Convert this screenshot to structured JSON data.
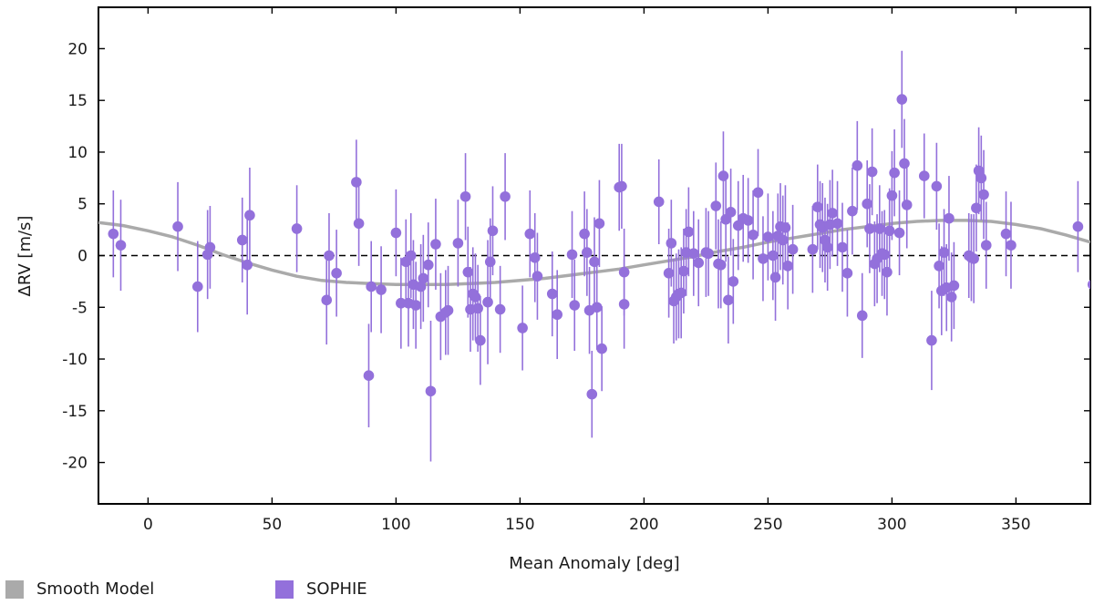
{
  "chart_data": {
    "type": "scatter",
    "title": "",
    "xlabel": "Mean Anomaly [deg]",
    "ylabel": "ΔRV [m/s]",
    "xlim": [
      -20,
      380
    ],
    "ylim": [
      -24,
      24
    ],
    "x_ticks": [
      0,
      50,
      100,
      150,
      200,
      250,
      300,
      350
    ],
    "y_ticks": [
      20,
      15,
      10,
      5,
      0,
      -5,
      -10,
      -15,
      -20
    ],
    "zero_line": true,
    "legend": [
      {
        "label": "Smooth Model",
        "color": "#aaaaaa"
      },
      {
        "label": "SOPHIE",
        "color": "#9370db"
      }
    ],
    "series": [
      {
        "name": "Smooth Model",
        "kind": "line",
        "color": "#aaaaaa",
        "x": [
          -20,
          -10,
          0,
          10,
          20,
          30,
          40,
          50,
          60,
          70,
          80,
          90,
          100,
          110,
          120,
          130,
          140,
          150,
          160,
          170,
          180,
          190,
          200,
          210,
          220,
          230,
          240,
          250,
          260,
          270,
          280,
          290,
          300,
          310,
          320,
          330,
          340,
          350,
          360,
          370,
          380
        ],
        "y": [
          3.2,
          2.9,
          2.4,
          1.8,
          1.0,
          0.1,
          -0.7,
          -1.4,
          -2.0,
          -2.4,
          -2.6,
          -2.7,
          -2.8,
          -2.8,
          -2.8,
          -2.7,
          -2.6,
          -2.4,
          -2.2,
          -1.9,
          -1.6,
          -1.3,
          -0.9,
          -0.5,
          -0.1,
          0.4,
          0.8,
          1.3,
          1.7,
          2.1,
          2.5,
          2.8,
          3.1,
          3.3,
          3.4,
          3.4,
          3.3,
          3.0,
          2.6,
          2.0,
          1.3
        ]
      },
      {
        "name": "SOPHIE",
        "kind": "scatter",
        "color": "#9370db",
        "x": [
          -14,
          -11,
          12,
          20,
          24,
          25,
          38,
          40,
          41,
          60,
          72,
          73,
          76,
          84,
          85,
          89,
          90,
          94,
          100,
          102,
          104,
          105,
          106,
          107,
          108,
          110,
          111,
          113,
          114,
          116,
          118,
          120,
          121,
          125,
          128,
          129,
          130,
          131,
          132,
          133,
          134,
          137,
          138,
          139,
          142,
          144,
          151,
          154,
          156,
          157,
          163,
          165,
          171,
          172,
          176,
          177,
          178,
          179,
          180,
          181,
          182,
          183,
          190,
          191,
          192,
          192,
          206,
          210,
          211,
          212,
          213,
          214,
          215,
          216,
          217,
          218,
          220,
          222,
          225,
          226,
          229,
          230,
          231,
          232,
          233,
          234,
          235,
          236,
          238,
          240,
          242,
          244,
          246,
          248,
          250,
          252,
          253,
          254,
          255,
          256,
          257,
          258,
          260,
          268,
          270,
          271,
          272,
          273,
          274,
          275,
          276,
          278,
          280,
          282,
          284,
          286,
          288,
          290,
          291,
          292,
          293,
          294,
          295,
          296,
          297,
          298,
          299,
          300,
          301,
          303,
          304,
          305,
          306,
          313,
          316,
          318,
          319,
          320,
          321,
          322,
          323,
          324,
          325,
          331,
          332,
          333,
          334,
          335,
          336,
          337,
          338,
          346,
          348,
          375,
          381
        ],
        "y": [
          2.1,
          1.0,
          2.8,
          -3.0,
          0.1,
          0.8,
          1.5,
          -0.9,
          3.9,
          2.6,
          -4.3,
          0.0,
          -1.7,
          7.1,
          3.1,
          -11.6,
          -3.0,
          -3.3,
          2.2,
          -4.6,
          -0.6,
          -4.6,
          0.0,
          -2.8,
          -4.8,
          -3.0,
          -2.2,
          -0.9,
          -13.1,
          1.1,
          -5.9,
          -5.5,
          -5.3,
          1.2,
          5.7,
          -1.6,
          -5.2,
          -3.7,
          -4.0,
          -5.1,
          -8.2,
          -4.5,
          -0.6,
          2.4,
          -5.2,
          5.7,
          -7.0,
          2.1,
          -0.2,
          -2.0,
          -3.7,
          -5.7,
          0.1,
          -4.8,
          2.1,
          0.3,
          -5.3,
          -13.4,
          -0.6,
          -5.0,
          3.1,
          -9.0,
          6.6,
          6.7,
          -1.6,
          -4.7,
          5.2,
          -1.7,
          1.2,
          -4.4,
          -4.0,
          -3.7,
          -3.6,
          -1.5,
          0.3,
          2.3,
          0.2,
          -0.7,
          0.3,
          0.2,
          4.8,
          -0.8,
          -0.9,
          7.7,
          3.5,
          -4.3,
          4.2,
          -2.5,
          2.9,
          3.6,
          3.4,
          2.0,
          6.1,
          -0.3,
          1.8,
          0.0,
          -2.1,
          1.9,
          2.8,
          1.5,
          2.7,
          -1.0,
          0.6,
          0.6,
          4.7,
          3.0,
          2.7,
          1.5,
          0.8,
          3.0,
          4.1,
          3.1,
          0.8,
          -1.7,
          4.3,
          8.7,
          -5.8,
          5.0,
          2.6,
          8.1,
          -0.8,
          -0.3,
          2.6,
          0.2,
          0.1,
          -1.6,
          2.4,
          5.8,
          8.0,
          2.2,
          15.1,
          8.9,
          4.9,
          7.7,
          -8.2,
          6.7,
          -1.0,
          -3.4,
          0.3,
          -3.1,
          3.6,
          -4.0,
          -2.9,
          0.0,
          -0.2,
          -0.3,
          4.6,
          8.2,
          7.5,
          5.9,
          1.0,
          2.1,
          1.0,
          2.8,
          -2.8
        ],
        "err": [
          4.2,
          4.4,
          4.3,
          4.4,
          4.3,
          4.0,
          4.1,
          4.8,
          4.6,
          4.2,
          4.3,
          4.1,
          4.2,
          4.1,
          4.1,
          5.0,
          4.4,
          4.2,
          4.2,
          4.4,
          4.1,
          4.2,
          4.1,
          4.3,
          4.2,
          4.1,
          4.2,
          4.1,
          6.8,
          4.4,
          4.2,
          4.1,
          4.3,
          4.2,
          4.2,
          4.4,
          4.1,
          4.5,
          4.2,
          4.2,
          4.3,
          6.0,
          4.2,
          4.3,
          4.2,
          4.2,
          4.1,
          4.2,
          4.3,
          4.2,
          4.1,
          4.3,
          4.2,
          4.4,
          4.1,
          4.2,
          4.2,
          4.2,
          4.3,
          4.1,
          4.2,
          4.1,
          4.2,
          4.1,
          4.2,
          4.3,
          4.1,
          4.3,
          4.2,
          4.1,
          4.2,
          4.3,
          4.4,
          4.1,
          4.2,
          4.3,
          4.1,
          4.2,
          4.3,
          4.1,
          4.2,
          4.3,
          4.2,
          4.3,
          4.1,
          4.2,
          4.2,
          4.1,
          4.3,
          4.2,
          4.1,
          4.3,
          4.2,
          4.1,
          4.2,
          4.3,
          4.2,
          4.1,
          4.2,
          4.3,
          4.1,
          4.2,
          4.3,
          4.2,
          4.1,
          4.2,
          4.3,
          4.1,
          4.2,
          4.3,
          4.2,
          4.1,
          4.3,
          4.2,
          4.2,
          4.3,
          4.1,
          4.2,
          4.3,
          4.2,
          4.1,
          4.3,
          4.2,
          4.1,
          4.3,
          4.2,
          4.1,
          4.3,
          4.2,
          4.1,
          4.7,
          4.3,
          4.2,
          4.1,
          4.8,
          4.2,
          4.1,
          4.3,
          4.2,
          4.2,
          4.1,
          4.3,
          4.2,
          4.1,
          4.2,
          4.3,
          4.2,
          4.2,
          4.1,
          4.3,
          4.2,
          4.1,
          4.2,
          4.4,
          4.3
        ]
      }
    ]
  }
}
